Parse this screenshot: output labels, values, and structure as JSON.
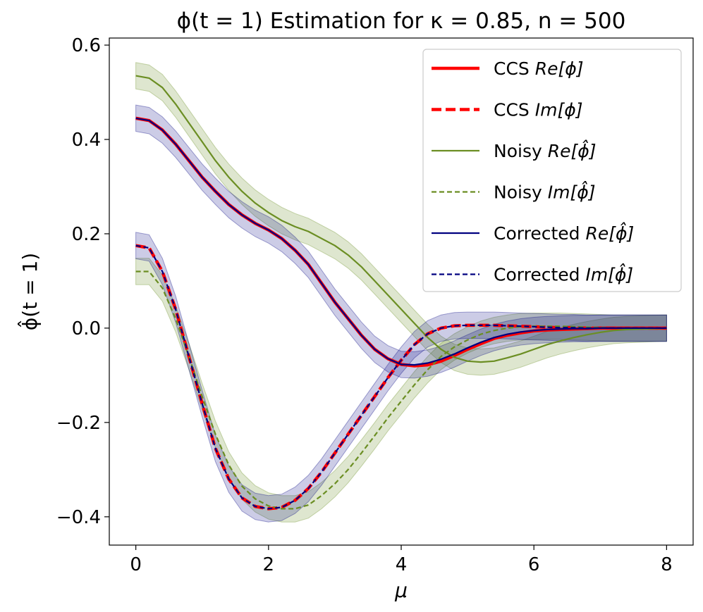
{
  "chart_data": {
    "type": "line",
    "title": "ϕ(t = 1) Estimation for κ = 0.85, n = 500",
    "xlabel": "μ",
    "ylabel": "ϕ̂(t = 1)",
    "xlim": [
      -0.4,
      8.4
    ],
    "ylim": [
      -0.46,
      0.615
    ],
    "xticks": [
      0,
      2,
      4,
      6,
      8
    ],
    "yticks": [
      -0.4,
      -0.2,
      0.0,
      0.2,
      0.4,
      0.6
    ],
    "xtick_labels": [
      "0",
      "2",
      "4",
      "6",
      "8"
    ],
    "ytick_labels": [
      "−0.4",
      "−0.2",
      "0.0",
      "0.2",
      "0.4",
      "0.6"
    ],
    "grid": false,
    "legend_position": "top-right",
    "x": [
      0,
      0.2,
      0.4,
      0.6,
      0.8,
      1.0,
      1.2,
      1.4,
      1.6,
      1.8,
      2.0,
      2.2,
      2.4,
      2.6,
      2.8,
      3.0,
      3.2,
      3.4,
      3.6,
      3.8,
      4.0,
      4.2,
      4.4,
      4.6,
      4.8,
      5.0,
      5.2,
      5.4,
      5.6,
      5.8,
      6.0,
      6.2,
      6.4,
      6.6,
      6.8,
      7.0,
      7.2,
      7.4,
      7.6,
      7.8,
      8.0
    ],
    "colors": {
      "ccs": "#ff0000",
      "noisy": "#6b8e23",
      "corrected": "#000080"
    },
    "series": [
      {
        "name": "CCS Re[ϕ]",
        "legend_prefix": "CCS ",
        "legend_math": "Re[ϕ]",
        "color": "#ff0000",
        "style": "solid",
        "width": 4.5,
        "values": [
          0.445,
          0.44,
          0.42,
          0.39,
          0.355,
          0.32,
          0.29,
          0.262,
          0.24,
          0.222,
          0.208,
          0.19,
          0.165,
          0.135,
          0.095,
          0.055,
          0.02,
          -0.015,
          -0.045,
          -0.065,
          -0.077,
          -0.08,
          -0.078,
          -0.07,
          -0.058,
          -0.045,
          -0.033,
          -0.022,
          -0.015,
          -0.01,
          -0.006,
          -0.004,
          -0.003,
          -0.002,
          -0.001,
          0.0,
          0.0,
          0.0,
          0.0,
          0.0,
          0.0
        ]
      },
      {
        "name": "CCS Im[ϕ]",
        "legend_prefix": "CCS ",
        "legend_math": "Im[ϕ]",
        "color": "#ff0000",
        "style": "dashed",
        "width": 4.5,
        "values": [
          0.175,
          0.17,
          0.12,
          0.04,
          -0.06,
          -0.16,
          -0.255,
          -0.32,
          -0.36,
          -0.378,
          -0.383,
          -0.38,
          -0.365,
          -0.34,
          -0.305,
          -0.265,
          -0.225,
          -0.185,
          -0.145,
          -0.105,
          -0.068,
          -0.035,
          -0.012,
          0.0,
          0.005,
          0.006,
          0.006,
          0.006,
          0.005,
          0.004,
          0.003,
          0.002,
          0.001,
          0.001,
          0.0,
          0.0,
          0.0,
          0.0,
          0.0,
          0.0,
          0.0
        ]
      },
      {
        "name": "Noisy Re[ϕ̂]",
        "legend_prefix": "Noisy ",
        "legend_math": "Re[ϕ̂]",
        "color": "#6b8e23",
        "style": "solid",
        "width": 2.2,
        "values": [
          0.535,
          0.53,
          0.51,
          0.475,
          0.435,
          0.395,
          0.355,
          0.32,
          0.29,
          0.265,
          0.245,
          0.228,
          0.215,
          0.205,
          0.19,
          0.175,
          0.155,
          0.13,
          0.1,
          0.07,
          0.04,
          0.01,
          -0.02,
          -0.045,
          -0.062,
          -0.07,
          -0.072,
          -0.07,
          -0.063,
          -0.055,
          -0.045,
          -0.035,
          -0.027,
          -0.02,
          -0.014,
          -0.009,
          -0.005,
          -0.003,
          -0.002,
          -0.001,
          0.0
        ]
      },
      {
        "name": "Noisy Im[ϕ̂]",
        "legend_prefix": "Noisy ",
        "legend_math": "Im[ϕ̂]",
        "color": "#6b8e23",
        "style": "dashed",
        "width": 2.2,
        "values": [
          0.12,
          0.12,
          0.085,
          0.02,
          -0.06,
          -0.145,
          -0.225,
          -0.29,
          -0.335,
          -0.362,
          -0.377,
          -0.383,
          -0.383,
          -0.375,
          -0.355,
          -0.33,
          -0.3,
          -0.265,
          -0.228,
          -0.19,
          -0.155,
          -0.12,
          -0.088,
          -0.06,
          -0.04,
          -0.025,
          -0.013,
          -0.005,
          0.0,
          0.003,
          0.004,
          0.004,
          0.004,
          0.003,
          0.002,
          0.001,
          0.0,
          0.0,
          0.0,
          0.0,
          0.0
        ]
      },
      {
        "name": "Corrected Re[ϕ̂]",
        "legend_prefix": "Corrected ",
        "legend_math": "Re[ϕ̂]",
        "color": "#000080",
        "style": "solid",
        "width": 2.2,
        "values": [
          0.445,
          0.44,
          0.42,
          0.39,
          0.355,
          0.32,
          0.29,
          0.262,
          0.24,
          0.222,
          0.208,
          0.19,
          0.165,
          0.135,
          0.095,
          0.055,
          0.02,
          -0.015,
          -0.045,
          -0.065,
          -0.077,
          -0.078,
          -0.074,
          -0.066,
          -0.055,
          -0.042,
          -0.03,
          -0.02,
          -0.013,
          -0.008,
          -0.005,
          -0.003,
          -0.002,
          -0.001,
          -0.001,
          0.0,
          0.0,
          0.0,
          0.0,
          0.0,
          0.0
        ]
      },
      {
        "name": "Corrected Im[ϕ̂]",
        "legend_prefix": "Corrected ",
        "legend_math": "Im[ϕ̂]",
        "color": "#000080",
        "style": "dashed",
        "width": 2.2,
        "values": [
          0.175,
          0.17,
          0.12,
          0.04,
          -0.06,
          -0.16,
          -0.255,
          -0.32,
          -0.36,
          -0.378,
          -0.383,
          -0.38,
          -0.365,
          -0.34,
          -0.305,
          -0.265,
          -0.225,
          -0.185,
          -0.145,
          -0.105,
          -0.068,
          -0.035,
          -0.012,
          0.0,
          0.005,
          0.006,
          0.006,
          0.006,
          0.005,
          0.004,
          0.003,
          0.002,
          0.001,
          0.001,
          0.0,
          0.0,
          0.0,
          0.0,
          0.0,
          0.0,
          0.0
        ]
      }
    ],
    "bands": [
      {
        "name": "Noisy Re band",
        "color": "#6b8e23",
        "opacity": 0.22,
        "center": "Noisy Re[ϕ̂]",
        "halfwidth": 0.028
      },
      {
        "name": "Noisy Im band",
        "color": "#6b8e23",
        "opacity": 0.22,
        "center": "Noisy Im[ϕ̂]",
        "halfwidth": 0.028
      },
      {
        "name": "Corrected Re band",
        "color": "#000080",
        "opacity": 0.2,
        "center": "Corrected Re[ϕ̂]",
        "halfwidth": 0.028
      },
      {
        "name": "Corrected Im band",
        "color": "#000080",
        "opacity": 0.2,
        "center": "Corrected Im[ϕ̂]",
        "halfwidth": 0.028
      }
    ]
  }
}
